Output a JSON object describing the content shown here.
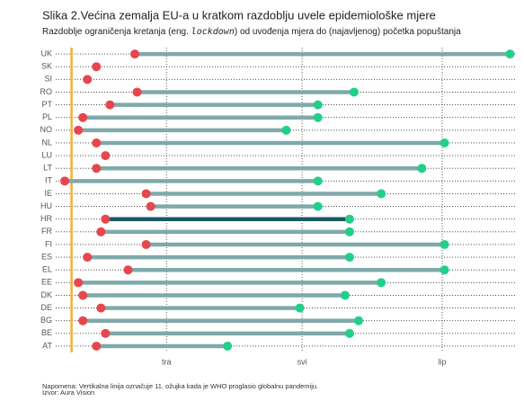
{
  "chart_data": {
    "type": "dumbbell",
    "title": "Slika 2.Većina zemalja EU-a u kratkom razdoblju uvele epidemiološke mjere",
    "subtitle": [
      "Razdoblje ograničenja kretanja (eng. ",
      "lockdown",
      ") od uvođenja mjera do (najavljenog) početka popuštanja"
    ],
    "categories": [
      "UK",
      "SK",
      "SI",
      "RO",
      "PT",
      "PL",
      "NO",
      "NL",
      "LU",
      "LT",
      "IT",
      "IE",
      "HU",
      "HR",
      "FR",
      "FI",
      "ES",
      "EL",
      "EE",
      "DK",
      "DE",
      "BG",
      "BE",
      "AT"
    ],
    "series": [
      {
        "color": "#e5474d",
        "values": [
          85,
          76.5,
          74.5,
          85.5,
          79.5,
          73.5,
          72.5,
          76.5,
          78.5,
          76.5,
          69.5,
          87.5,
          88.5,
          78.5,
          77.5,
          87.5,
          74.5,
          83.5,
          72.5,
          73.5,
          77.5,
          73.5,
          78.5,
          76.5
        ]
      },
      {
        "color": "#22cf8a",
        "values": [
          168,
          null,
          null,
          133.5,
          125.5,
          125.5,
          118.5,
          153.5,
          null,
          148.5,
          125.5,
          139.5,
          125.5,
          132.5,
          132.5,
          153.5,
          132.5,
          153.5,
          139.5,
          131.5,
          121.5,
          134.5,
          132.5,
          105.5
        ]
      }
    ],
    "line_color": "#7fa9aa",
    "highlight": {
      "category": "HR",
      "color": "#1b5864"
    },
    "reference_line": {
      "value": 71,
      "color": "#f2b134"
    },
    "xlim": [
      67.5,
      169.5
    ],
    "xticks": [
      {
        "value": 92,
        "label": "tra"
      },
      {
        "value": 122,
        "label": "svi"
      },
      {
        "value": 153,
        "label": "lip"
      }
    ],
    "grid": true,
    "notes": [
      "Napomena: Vertikalna linija označuje 11. ožujka kada je WHO proglasio globalnu pandemiju.",
      "Izvor: Aura Vision"
    ]
  }
}
